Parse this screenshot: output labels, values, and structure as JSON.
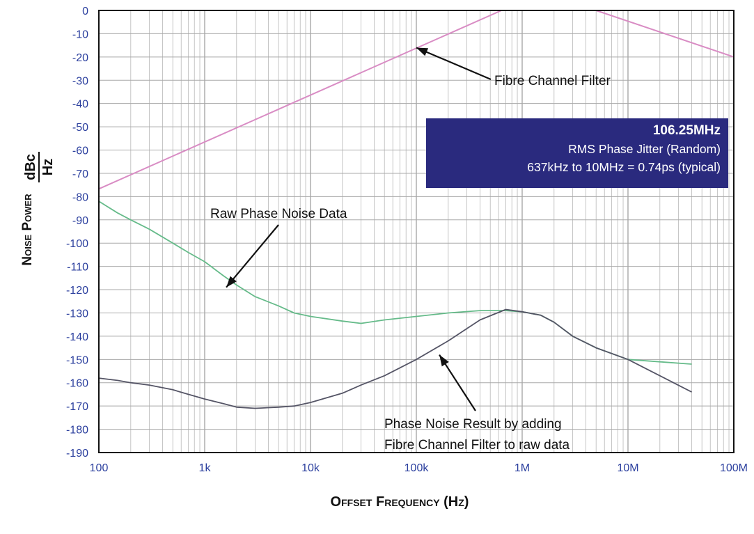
{
  "chart_data": {
    "type": "line",
    "x_scale": "log",
    "xlim": [
      100,
      100000000
    ],
    "ylim": [
      -190,
      0
    ],
    "x_tick_labels": [
      "100",
      "1k",
      "10k",
      "100k",
      "1M",
      "10M",
      "100M"
    ],
    "y_tick_labels": [
      "0",
      "-10",
      "-20",
      "-30",
      "-40",
      "-50",
      "-60",
      "-70",
      "-80",
      "-90",
      "-100",
      "-110",
      "-120",
      "-130",
      "-140",
      "-150",
      "-160",
      "-170",
      "-180",
      "-190"
    ],
    "xlabel": "Offset Frequency (Hz)",
    "ylabel_main": "Noise Power",
    "ylabel_num": "dBc",
    "ylabel_den": "Hz",
    "grid": true,
    "series": [
      {
        "key": "filter",
        "color": "#d98cc4",
        "x": [
          100,
          637000,
          5000000,
          100000000
        ],
        "y": [
          -76.7,
          0,
          0,
          -20
        ]
      },
      {
        "key": "raw",
        "color": "#66bb8a",
        "x": [
          100,
          150,
          200,
          300,
          500,
          700,
          1000,
          1500,
          2000,
          3000,
          5000,
          7000,
          10000,
          20000,
          30000,
          50000,
          100000,
          200000,
          400000,
          700000,
          1000000,
          1500000,
          2000000,
          3000000,
          5000000,
          10000000,
          20000000,
          40000000
        ],
        "y": [
          -82,
          -87,
          -90,
          -94,
          -100,
          -104,
          -108,
          -114,
          -118,
          -123,
          -127,
          -130,
          -131.5,
          -133.5,
          -134.5,
          -133,
          -131.5,
          -130,
          -129,
          -129,
          -129.5,
          -131,
          -134,
          -140,
          -145,
          -150,
          -151,
          -152
        ]
      },
      {
        "key": "result",
        "color": "#555566",
        "x": [
          100,
          150,
          200,
          300,
          500,
          700,
          1000,
          1500,
          2000,
          3000,
          5000,
          7000,
          10000,
          20000,
          30000,
          50000,
          100000,
          200000,
          400000,
          700000,
          1000000,
          1500000,
          2000000,
          3000000,
          5000000,
          10000000,
          20000000,
          40000000
        ],
        "y": [
          -158,
          -159,
          -160,
          -161,
          -163,
          -165,
          -167,
          -169,
          -170.5,
          -171,
          -170.5,
          -170,
          -168.5,
          -164.5,
          -161,
          -157,
          -150,
          -142,
          -133,
          -128.5,
          -129.5,
          -131,
          -134,
          -140,
          -145,
          -150,
          -157,
          -164
        ]
      }
    ],
    "annotations": [
      {
        "text": "Fibre Channel Filter",
        "x": 100000,
        "y": -16
      },
      {
        "text": "Raw Phase Noise Data",
        "x": 1600,
        "y": -119
      },
      {
        "text": "Phase Noise Result by adding",
        "x": 165000,
        "y": -148
      },
      {
        "text": "Fibre Channel Filter to raw data",
        "x": 165000,
        "y": -148
      }
    ],
    "info_box": {
      "title": "106.25MHz",
      "line1": "RMS Phase Jitter  (Random)",
      "line2": "637kHz to 10MHz = 0.74ps (typical)",
      "color": "#2a2a7e"
    }
  }
}
